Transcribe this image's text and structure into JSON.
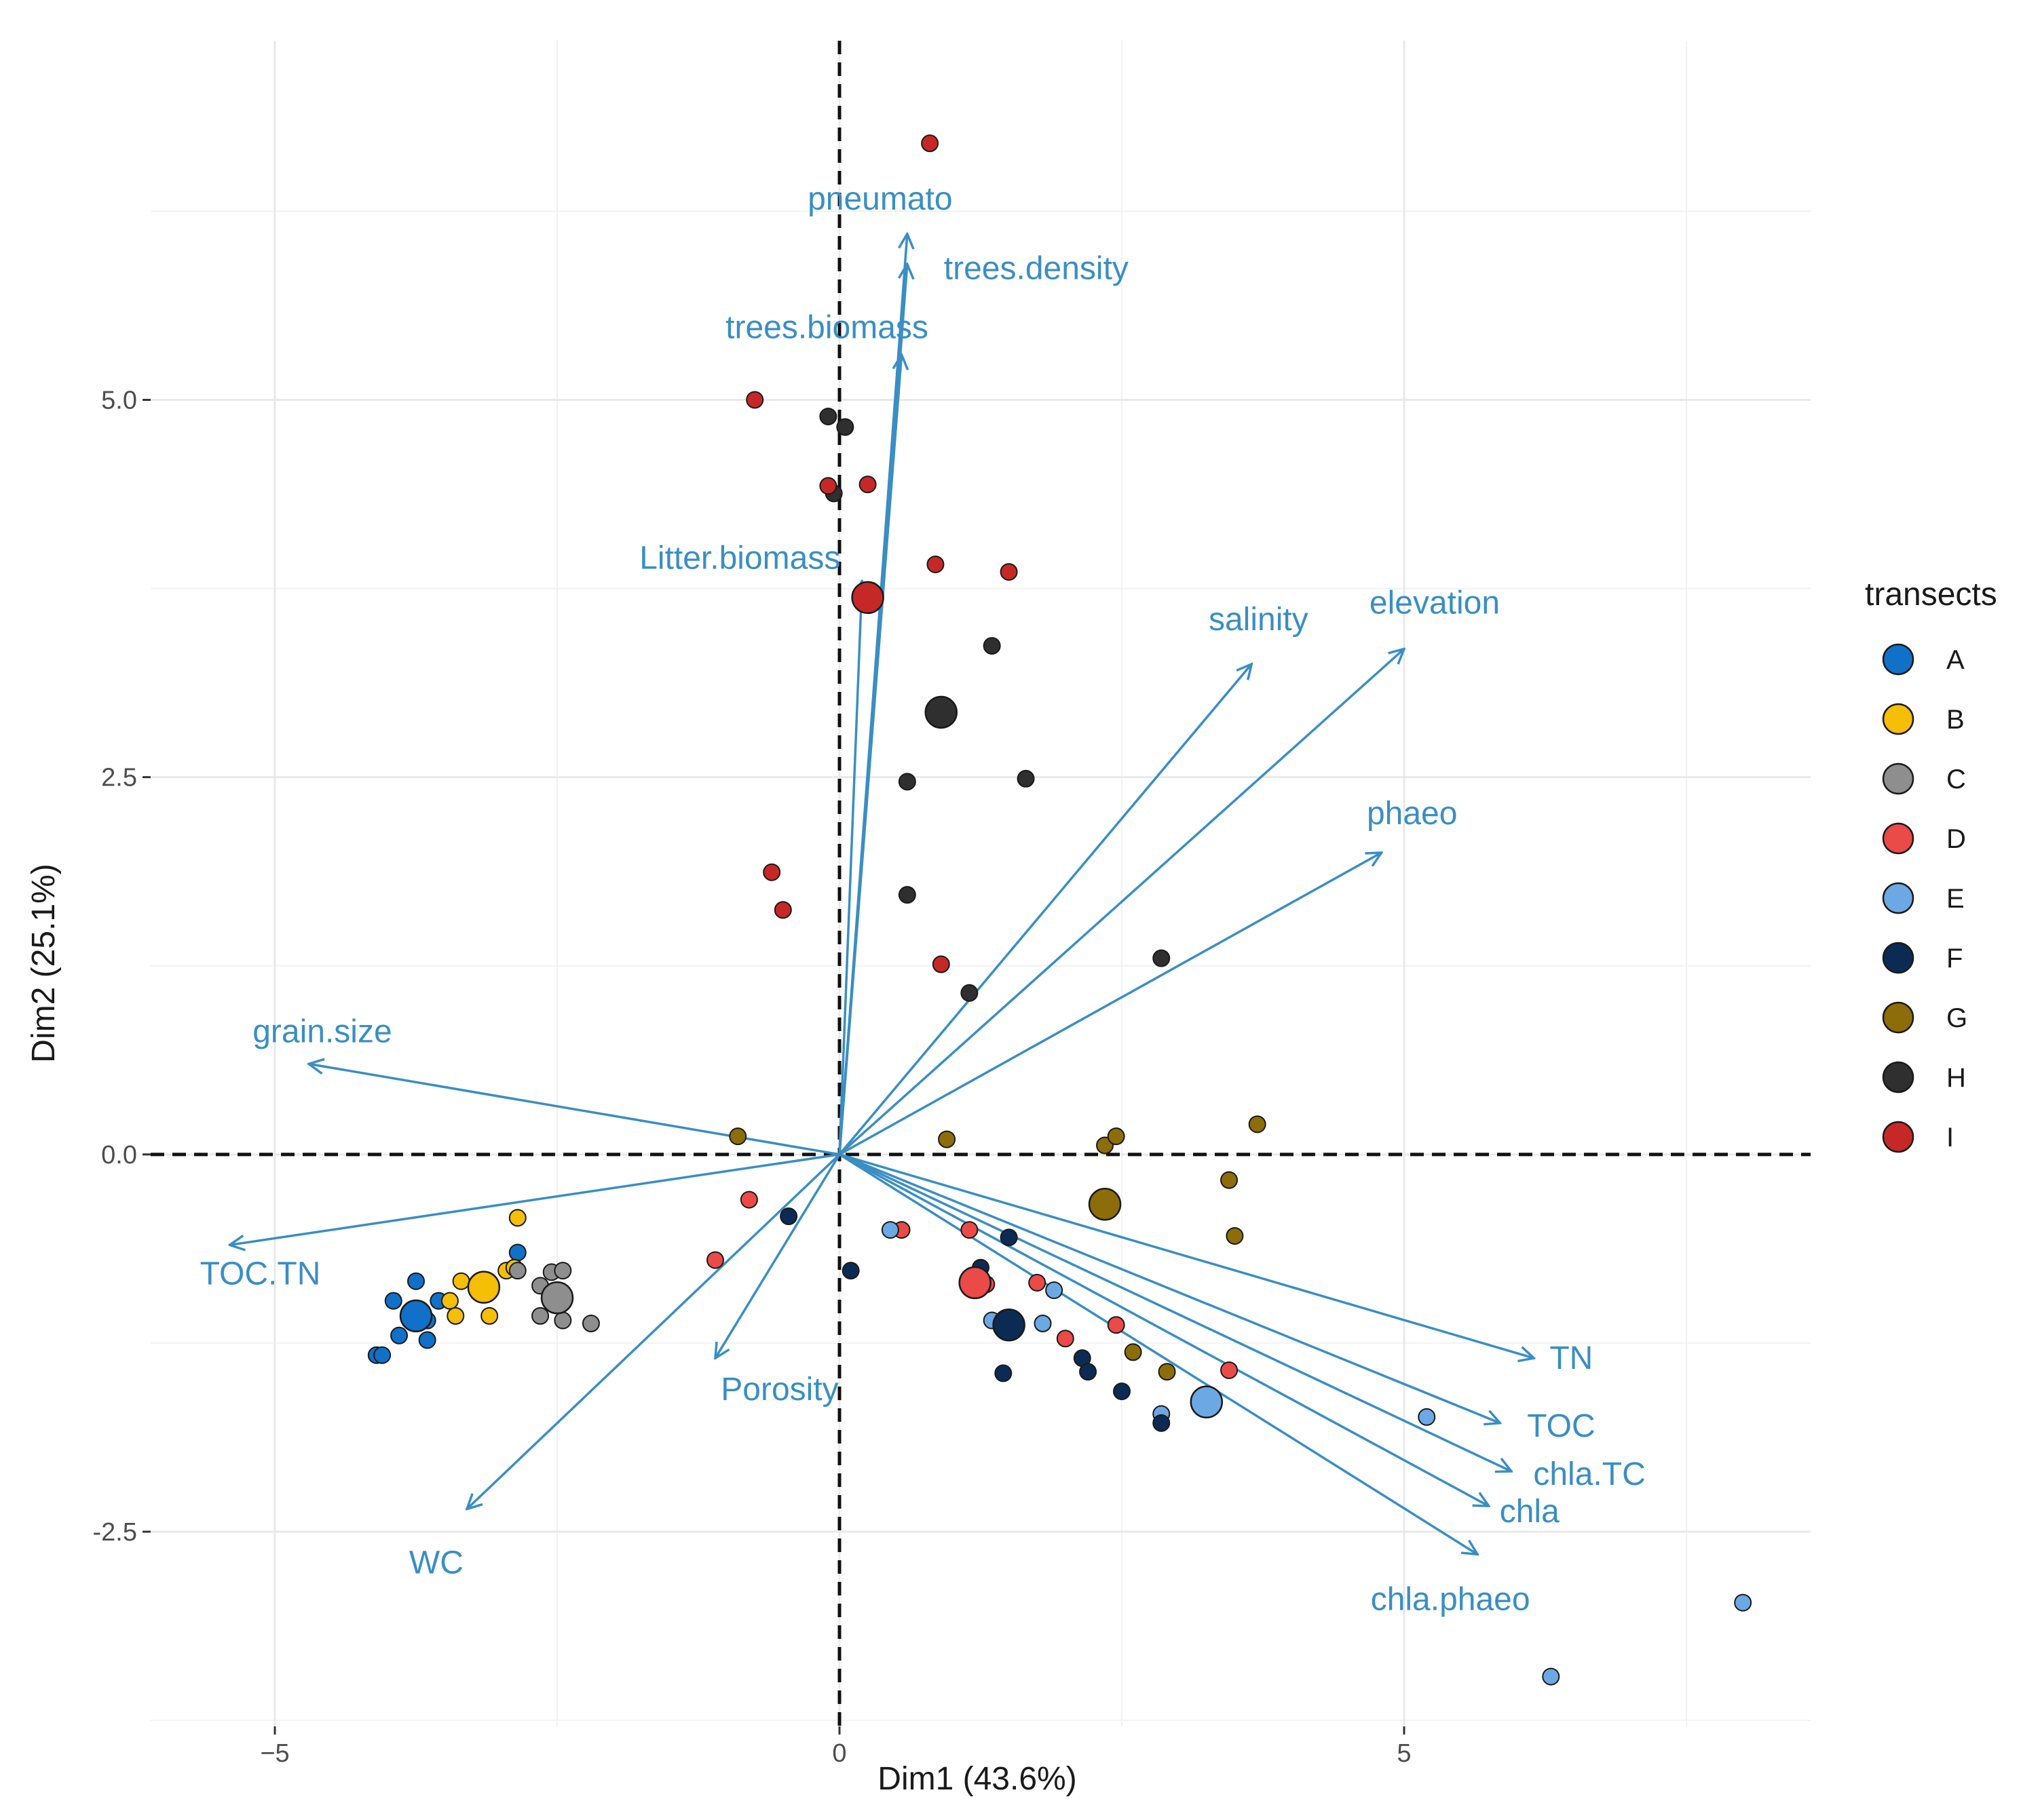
{
  "chart_data": {
    "type": "scatter",
    "subtype": "pca-biplot",
    "title": "",
    "xlabel": "Dim1 (43.6%)",
    "ylabel": "Dim2 (25.1%)",
    "xlim": [
      -6.1,
      8.6
    ],
    "ylim": [
      -3.79,
      7.38
    ],
    "x_ticks": [
      {
        "value": -5,
        "label": "−5"
      },
      {
        "value": 0,
        "label": "0"
      },
      {
        "value": 5,
        "label": "5"
      }
    ],
    "y_ticks": [
      {
        "value": 5,
        "label": "5.0"
      },
      {
        "value": 2.5,
        "label": "2.5"
      },
      {
        "value": 0,
        "label": "0.0"
      },
      {
        "value": -2.5,
        "label": "-2.5"
      }
    ],
    "grid": true,
    "reference_lines": {
      "x": 0,
      "y": 0,
      "style": "dashed"
    },
    "legend": {
      "title": "transects",
      "position": "right",
      "entries": [
        {
          "label": "A",
          "color": "#1170C7"
        },
        {
          "label": "B",
          "color": "#F5BE07"
        },
        {
          "label": "C",
          "color": "#8E8E8E"
        },
        {
          "label": "D",
          "color": "#EA4A48"
        },
        {
          "label": "E",
          "color": "#6CA8E3"
        },
        {
          "label": "F",
          "color": "#0B2B54"
        },
        {
          "label": "G",
          "color": "#8C6D0A"
        },
        {
          "label": "H",
          "color": "#2F2F2F"
        },
        {
          "label": "I",
          "color": "#C62827"
        }
      ]
    },
    "arrow_color": "#3A8EC3",
    "loadings": [
      {
        "label": "pneumato",
        "x": 0.6,
        "y": 6.1
      },
      {
        "label": "trees.density",
        "x": 0.6,
        "y": 5.9
      },
      {
        "label": "trees.biomass",
        "x": 0.55,
        "y": 5.3
      },
      {
        "label": "Litter.biomass",
        "x": 0.2,
        "y": 3.8
      },
      {
        "label": "salinity",
        "x": 3.65,
        "y": 3.25
      },
      {
        "label": "elevation",
        "x": 5.0,
        "y": 3.35
      },
      {
        "label": "phaeo",
        "x": 4.8,
        "y": 2.0
      },
      {
        "label": "grain.size",
        "x": -4.7,
        "y": 0.6
      },
      {
        "label": "TOC.TN",
        "x": -5.4,
        "y": -0.6
      },
      {
        "label": "Porosity",
        "x": -1.1,
        "y": -1.35
      },
      {
        "label": "WC",
        "x": -3.3,
        "y": -2.35
      },
      {
        "label": "TN",
        "x": 6.15,
        "y": -1.35
      },
      {
        "label": "TOC",
        "x": 5.85,
        "y": -1.78
      },
      {
        "label": "chla.TC",
        "x": 5.95,
        "y": -2.1
      },
      {
        "label": "chla",
        "x": 5.75,
        "y": -2.33
      },
      {
        "label": "chla.phaeo",
        "x": 5.65,
        "y": -2.65
      }
    ],
    "series": [
      {
        "name": "A",
        "centroid": [
          -3.75,
          -1.07
        ],
        "points": [
          [
            -4.1,
            -1.33
          ],
          [
            -4.05,
            -1.33
          ],
          [
            -3.95,
            -0.97
          ],
          [
            -3.9,
            -1.2
          ],
          [
            -3.75,
            -0.84
          ],
          [
            -3.65,
            -1.1
          ],
          [
            -3.65,
            -1.23
          ],
          [
            -3.55,
            -0.97
          ],
          [
            -2.85,
            -0.65
          ]
        ]
      },
      {
        "name": "B",
        "centroid": [
          -3.15,
          -0.88
        ],
        "points": [
          [
            -2.85,
            -0.42
          ],
          [
            -3.35,
            -0.84
          ],
          [
            -3.45,
            -0.97
          ],
          [
            -3.4,
            -1.07
          ],
          [
            -3.1,
            -1.07
          ],
          [
            -2.95,
            -0.77
          ],
          [
            -2.88,
            -0.75
          ]
        ]
      },
      {
        "name": "C",
        "centroid": [
          -2.5,
          -0.95
        ],
        "points": [
          [
            -2.85,
            -0.77
          ],
          [
            -2.65,
            -0.87
          ],
          [
            -2.55,
            -0.78
          ],
          [
            -2.45,
            -0.77
          ],
          [
            -2.65,
            -1.07
          ],
          [
            -2.45,
            -1.1
          ],
          [
            -2.2,
            -1.12
          ]
        ]
      },
      {
        "name": "D",
        "centroid": [
          1.2,
          -0.85
        ],
        "points": [
          [
            -0.8,
            -0.3
          ],
          [
            -1.1,
            -0.7
          ],
          [
            0.55,
            -0.5
          ],
          [
            1.15,
            -0.5
          ],
          [
            1.75,
            -0.85
          ],
          [
            2.0,
            -1.22
          ],
          [
            2.45,
            -1.13
          ],
          [
            3.45,
            -1.43
          ],
          [
            1.3,
            -0.86
          ]
        ]
      },
      {
        "name": "E",
        "centroid": [
          3.25,
          -1.64
        ],
        "points": [
          [
            0.45,
            -0.5
          ],
          [
            1.35,
            -1.1
          ],
          [
            1.9,
            -0.9
          ],
          [
            1.8,
            -1.12
          ],
          [
            2.85,
            -1.72
          ],
          [
            5.2,
            -1.74
          ],
          [
            6.3,
            -3.46
          ],
          [
            8.0,
            -2.97
          ]
        ]
      },
      {
        "name": "F",
        "centroid": [
          1.5,
          -1.13
        ],
        "points": [
          [
            -0.45,
            -0.41
          ],
          [
            0.1,
            -0.77
          ],
          [
            1.5,
            -0.55
          ],
          [
            1.45,
            -1.12
          ],
          [
            1.45,
            -1.45
          ],
          [
            2.15,
            -1.35
          ],
          [
            2.2,
            -1.44
          ],
          [
            2.5,
            -1.57
          ],
          [
            2.85,
            -1.78
          ],
          [
            1.25,
            -0.75
          ]
        ]
      },
      {
        "name": "G",
        "centroid": [
          2.35,
          -0.33
        ],
        "points": [
          [
            -0.9,
            0.12
          ],
          [
            0.95,
            0.1
          ],
          [
            2.35,
            0.06
          ],
          [
            2.45,
            0.12
          ],
          [
            3.7,
            0.2
          ],
          [
            3.45,
            -0.17
          ],
          [
            3.5,
            -0.54
          ],
          [
            2.6,
            -1.31
          ],
          [
            2.9,
            -1.44
          ]
        ]
      },
      {
        "name": "H",
        "centroid": [
          0.9,
          2.93
        ],
        "points": [
          [
            -0.1,
            4.89
          ],
          [
            0.05,
            4.82
          ],
          [
            -0.05,
            4.38
          ],
          [
            1.35,
            3.37
          ],
          [
            0.6,
            2.47
          ],
          [
            1.65,
            2.49
          ],
          [
            0.6,
            1.72
          ],
          [
            1.15,
            1.07
          ],
          [
            2.85,
            1.3
          ]
        ]
      },
      {
        "name": "I",
        "centroid": [
          0.25,
          3.69
        ],
        "points": [
          [
            0.8,
            6.7
          ],
          [
            -0.75,
            5.0
          ],
          [
            -0.1,
            4.43
          ],
          [
            0.25,
            4.44
          ],
          [
            0.85,
            3.91
          ],
          [
            1.5,
            3.86
          ],
          [
            -0.6,
            1.87
          ],
          [
            -0.5,
            1.62
          ],
          [
            0.9,
            1.26
          ]
        ]
      }
    ]
  }
}
